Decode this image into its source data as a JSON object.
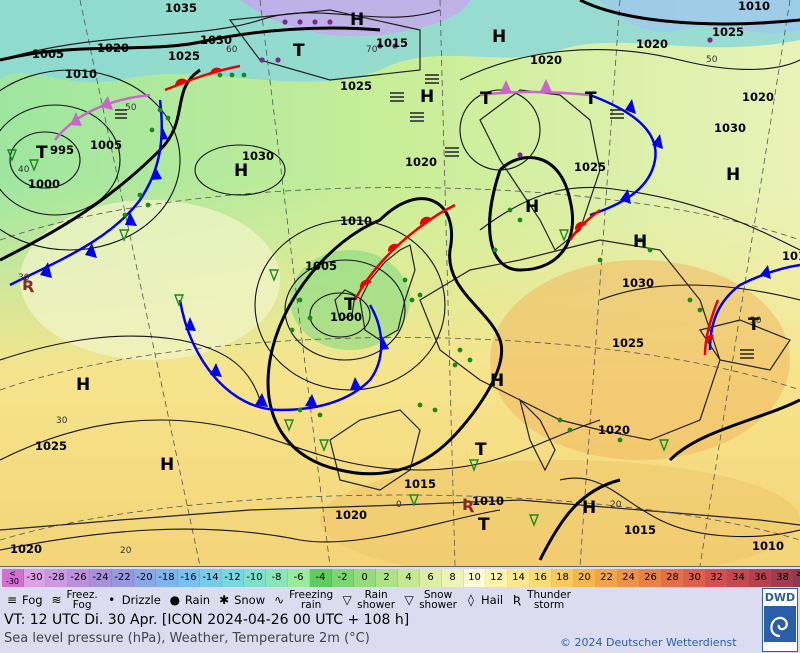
{
  "map": {
    "highs": [
      "H",
      "H",
      "H",
      "H",
      "H",
      "H",
      "H",
      "H",
      "H",
      "H",
      "H"
    ],
    "lows": [
      "T",
      "T",
      "T",
      "T",
      "T",
      "T",
      "T",
      "T"
    ],
    "isobars": [
      "1035",
      "1030",
      "1020",
      "1015",
      "1005",
      "1010",
      "1025",
      "1020",
      "1020",
      "1025",
      "1010",
      "1005",
      "995",
      "1000",
      "1030",
      "1025",
      "1030",
      "1020",
      "1025",
      "1030",
      "1010",
      "1005",
      "1000",
      "1025",
      "1015",
      "1010",
      "1020",
      "1015",
      "1020",
      "1025",
      "1020",
      "1010",
      "1020",
      "1010"
    ],
    "temp_marks": [
      "60",
      "70",
      "50",
      "40",
      "30",
      "30",
      "30",
      "20",
      "20",
      "0",
      "50"
    ]
  },
  "legend": {
    "scale": [
      "<\n-30",
      "-30",
      "-28",
      "-26",
      "-24",
      "-22",
      "-20",
      "-18",
      "-16",
      "-14",
      "-12",
      "-10",
      "-8",
      "-6",
      "-4",
      "-2",
      "0",
      "2",
      "4",
      "6",
      "8",
      "10",
      "12",
      "14",
      "16",
      "18",
      "20",
      "22",
      "24",
      "26",
      "28",
      "30",
      "32",
      "34",
      "36",
      "38",
      "≥40\n°C"
    ],
    "scale_colors": [
      "#d070d0",
      "#dca0e4",
      "#cc98e0",
      "#bc90dc",
      "#a890d8",
      "#9898dc",
      "#8ca8e4",
      "#80b4ec",
      "#78c0f0",
      "#78cce8",
      "#78d8e0",
      "#80e0cc",
      "#88e6b8",
      "#98ec9c",
      "#60cc60",
      "#7ad670",
      "#94dc7c",
      "#aee288",
      "#c6e894",
      "#dcefa4",
      "#eef4b8",
      "#fdfcd8",
      "#fcf4b0",
      "#fce890",
      "#f8dc74",
      "#f6ca5c",
      "#f2b84c",
      "#f0a644",
      "#ec9444",
      "#e88244",
      "#e47048",
      "#dc604c",
      "#d45050",
      "#c44850",
      "#b44050",
      "#a03c50",
      "#903850"
    ],
    "weather": [
      {
        "sym": "≡",
        "label": "Fog"
      },
      {
        "sym": "≋",
        "label": "Freez.\nFog"
      },
      {
        "sym": "•",
        "label": "Drizzle"
      },
      {
        "sym": "●",
        "label": "Rain"
      },
      {
        "sym": "✱",
        "label": "Snow"
      },
      {
        "sym": "∿",
        "label": "Freezing\nrain"
      },
      {
        "sym": "▽",
        "label": "Rain\nshower"
      },
      {
        "sym": "▽",
        "label": "Snow\nshower"
      },
      {
        "sym": "◊",
        "label": "Hail"
      },
      {
        "sym": "Ʀ",
        "label": "Thunder\nstorm"
      }
    ],
    "vt": "VT: 12 UTC Di.  30 Apr. [ICON 2024-04-26  00 UTC + 108 h]",
    "desc": "Sea level pressure (hPa), Weather, Temperature 2m (°C)",
    "copyright": "© 2024 Deutscher Wetterdienst",
    "logo": "DWD"
  }
}
